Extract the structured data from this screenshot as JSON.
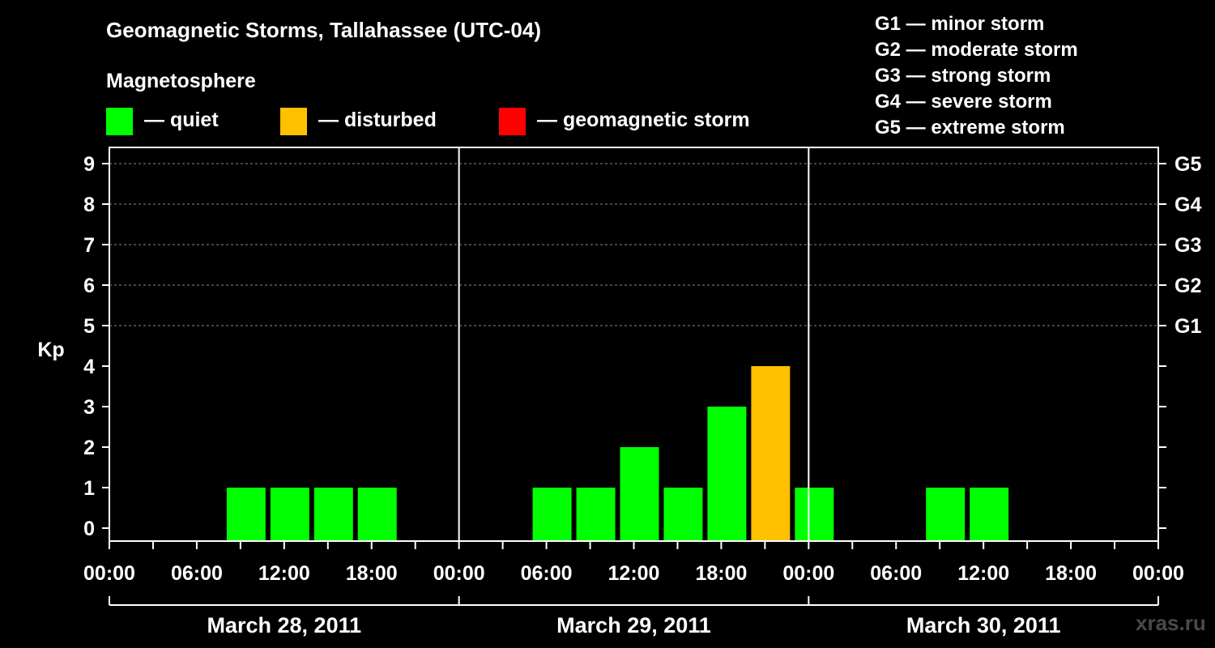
{
  "title": "Geomagnetic Storms, Tallahassee (UTC-04)",
  "magnetosphere": {
    "title": "Magnetosphere",
    "items": [
      {
        "label": "— quiet",
        "color": "#00ff00"
      },
      {
        "label": "— disturbed",
        "color": "#ffc000"
      },
      {
        "label": "— geomagnetic storm",
        "color": "#ff0000"
      }
    ]
  },
  "g_scale": [
    "G1 — minor storm",
    "G2 — moderate storm",
    "G3 — strong storm",
    "G4 — severe storm",
    "G5 — extreme storm"
  ],
  "watermark": "xras.ru",
  "chart_data": {
    "type": "bar",
    "title": "Geomagnetic Storms, Tallahassee (UTC-04)",
    "ylabel": "Kp",
    "ylim": [
      0,
      9
    ],
    "yticks": [
      "0",
      "1",
      "2",
      "3",
      "4",
      "5",
      "6",
      "7",
      "8",
      "9"
    ],
    "right_ticks": [
      {
        "kp": 5,
        "label": "G1"
      },
      {
        "kp": 6,
        "label": "G2"
      },
      {
        "kp": 7,
        "label": "G3"
      },
      {
        "kp": 8,
        "label": "G4"
      },
      {
        "kp": 9,
        "label": "G5"
      }
    ],
    "x_ticks": [
      "00:00",
      "06:00",
      "12:00",
      "18:00",
      "00:00",
      "06:00",
      "12:00",
      "18:00",
      "00:00",
      "06:00",
      "12:00",
      "18:00",
      "00:00"
    ],
    "days": [
      "March 28, 2011",
      "March 29, 2011",
      "March 30, 2011"
    ],
    "x_range_hours": [
      0,
      72
    ],
    "bar_interval_hours": 3,
    "grid": true,
    "bars": [
      {
        "start_hour": 8,
        "kp": 1,
        "status": "quiet"
      },
      {
        "start_hour": 11,
        "kp": 1,
        "status": "quiet"
      },
      {
        "start_hour": 14,
        "kp": 1,
        "status": "quiet"
      },
      {
        "start_hour": 17,
        "kp": 1,
        "status": "quiet"
      },
      {
        "start_hour": 29,
        "kp": 1,
        "status": "quiet"
      },
      {
        "start_hour": 32,
        "kp": 1,
        "status": "quiet"
      },
      {
        "start_hour": 35,
        "kp": 2,
        "status": "quiet"
      },
      {
        "start_hour": 38,
        "kp": 1,
        "status": "quiet"
      },
      {
        "start_hour": 41,
        "kp": 3,
        "status": "quiet"
      },
      {
        "start_hour": 44,
        "kp": 4,
        "status": "disturbed"
      },
      {
        "start_hour": 47,
        "kp": 1,
        "status": "quiet"
      },
      {
        "start_hour": 56,
        "kp": 1,
        "status": "quiet"
      },
      {
        "start_hour": 59,
        "kp": 1,
        "status": "quiet"
      }
    ],
    "status_colors": {
      "quiet": "#00ff00",
      "disturbed": "#ffc000",
      "storm": "#ff0000"
    }
  }
}
